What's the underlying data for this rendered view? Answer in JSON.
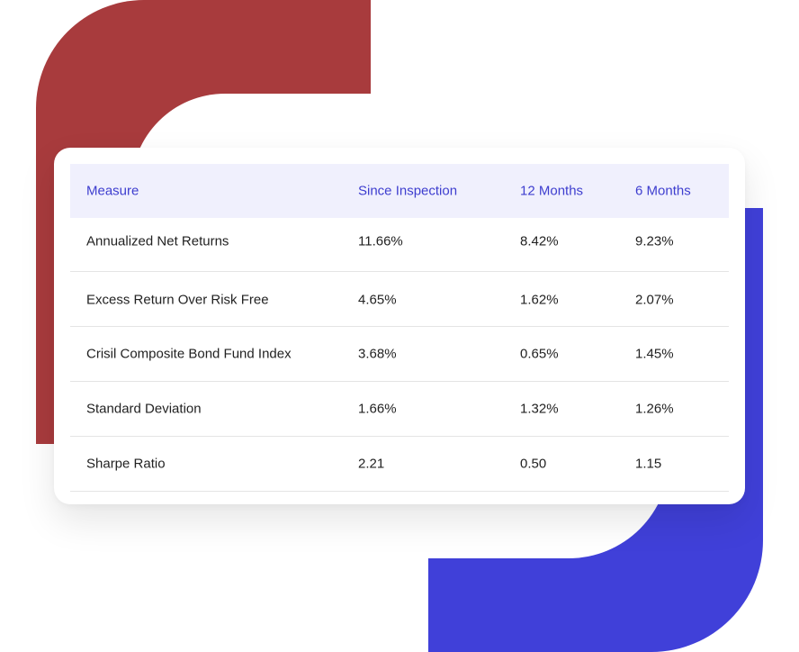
{
  "colors": {
    "red_accent": "#a83b3d",
    "blue_accent": "#4040d9",
    "header_bg": "#f0f0fd",
    "header_text": "#3e3ecf"
  },
  "table": {
    "headers": [
      "Measure",
      "Since Inspection",
      "12 Months",
      "6 Months"
    ],
    "rows": [
      [
        "Annualized Net Returns",
        "11.66%",
        "8.42%",
        "9.23%"
      ],
      [
        "Excess Return Over Risk Free",
        "4.65%",
        "1.62%",
        "2.07%"
      ],
      [
        "Crisil Composite Bond Fund Index",
        "3.68%",
        "0.65%",
        "1.45%"
      ],
      [
        "Standard Deviation",
        "1.66%",
        "1.32%",
        "1.26%"
      ],
      [
        "Sharpe Ratio",
        "2.21",
        "0.50",
        "1.15"
      ]
    ]
  }
}
